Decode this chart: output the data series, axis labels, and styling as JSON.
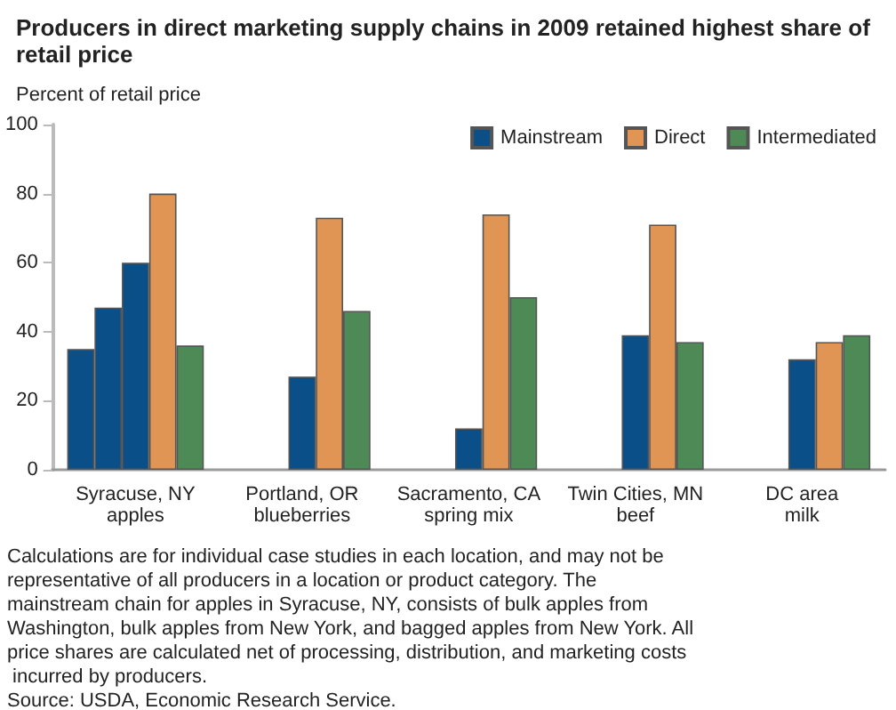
{
  "chart_data": {
    "type": "bar",
    "title": "Producers in direct marketing supply chains in 2009 retained highest share of retail price",
    "ylabel": "Percent of retail price",
    "categories": [
      "Syracuse, NY\napples",
      "Portland, OR\nblueberries",
      "Sacramento, CA\nspring mix",
      "Twin Cities, MN\nbeef",
      "DC area\nmilk"
    ],
    "series": [
      {
        "color": "#0b4f88",
        "values": [
          35,
          null,
          null,
          null,
          null
        ]
      },
      {
        "color": "#0b4f88",
        "values": [
          47,
          null,
          null,
          null,
          null
        ]
      },
      {
        "name": "Mainstream",
        "color": "#0b4f88",
        "values": [
          60,
          27,
          12,
          39,
          32
        ]
      },
      {
        "name": "Direct",
        "color": "#e09555",
        "values": [
          80,
          73,
          74,
          71,
          37
        ]
      },
      {
        "name": "Intermediated",
        "color": "#4d8a55",
        "values": [
          36,
          46,
          50,
          37,
          39
        ]
      }
    ],
    "ylim": [
      0,
      100
    ],
    "yticks": [
      0,
      20,
      40,
      60,
      80,
      100
    ],
    "grid": false,
    "legend": "top right",
    "annotations": [
      "Calculations are for individual case studies in each location, and may not be representative of all producers in a location or product category. The mainstream chain for apples in Syracuse, NY, consists of bulk apples from Washington, bulk apples from New York, and bagged apples from New York. All price shares are calculated net of processing, distribution, and marketing costs incurred by producers.",
      "Source: USDA, Economic Research Service."
    ]
  }
}
